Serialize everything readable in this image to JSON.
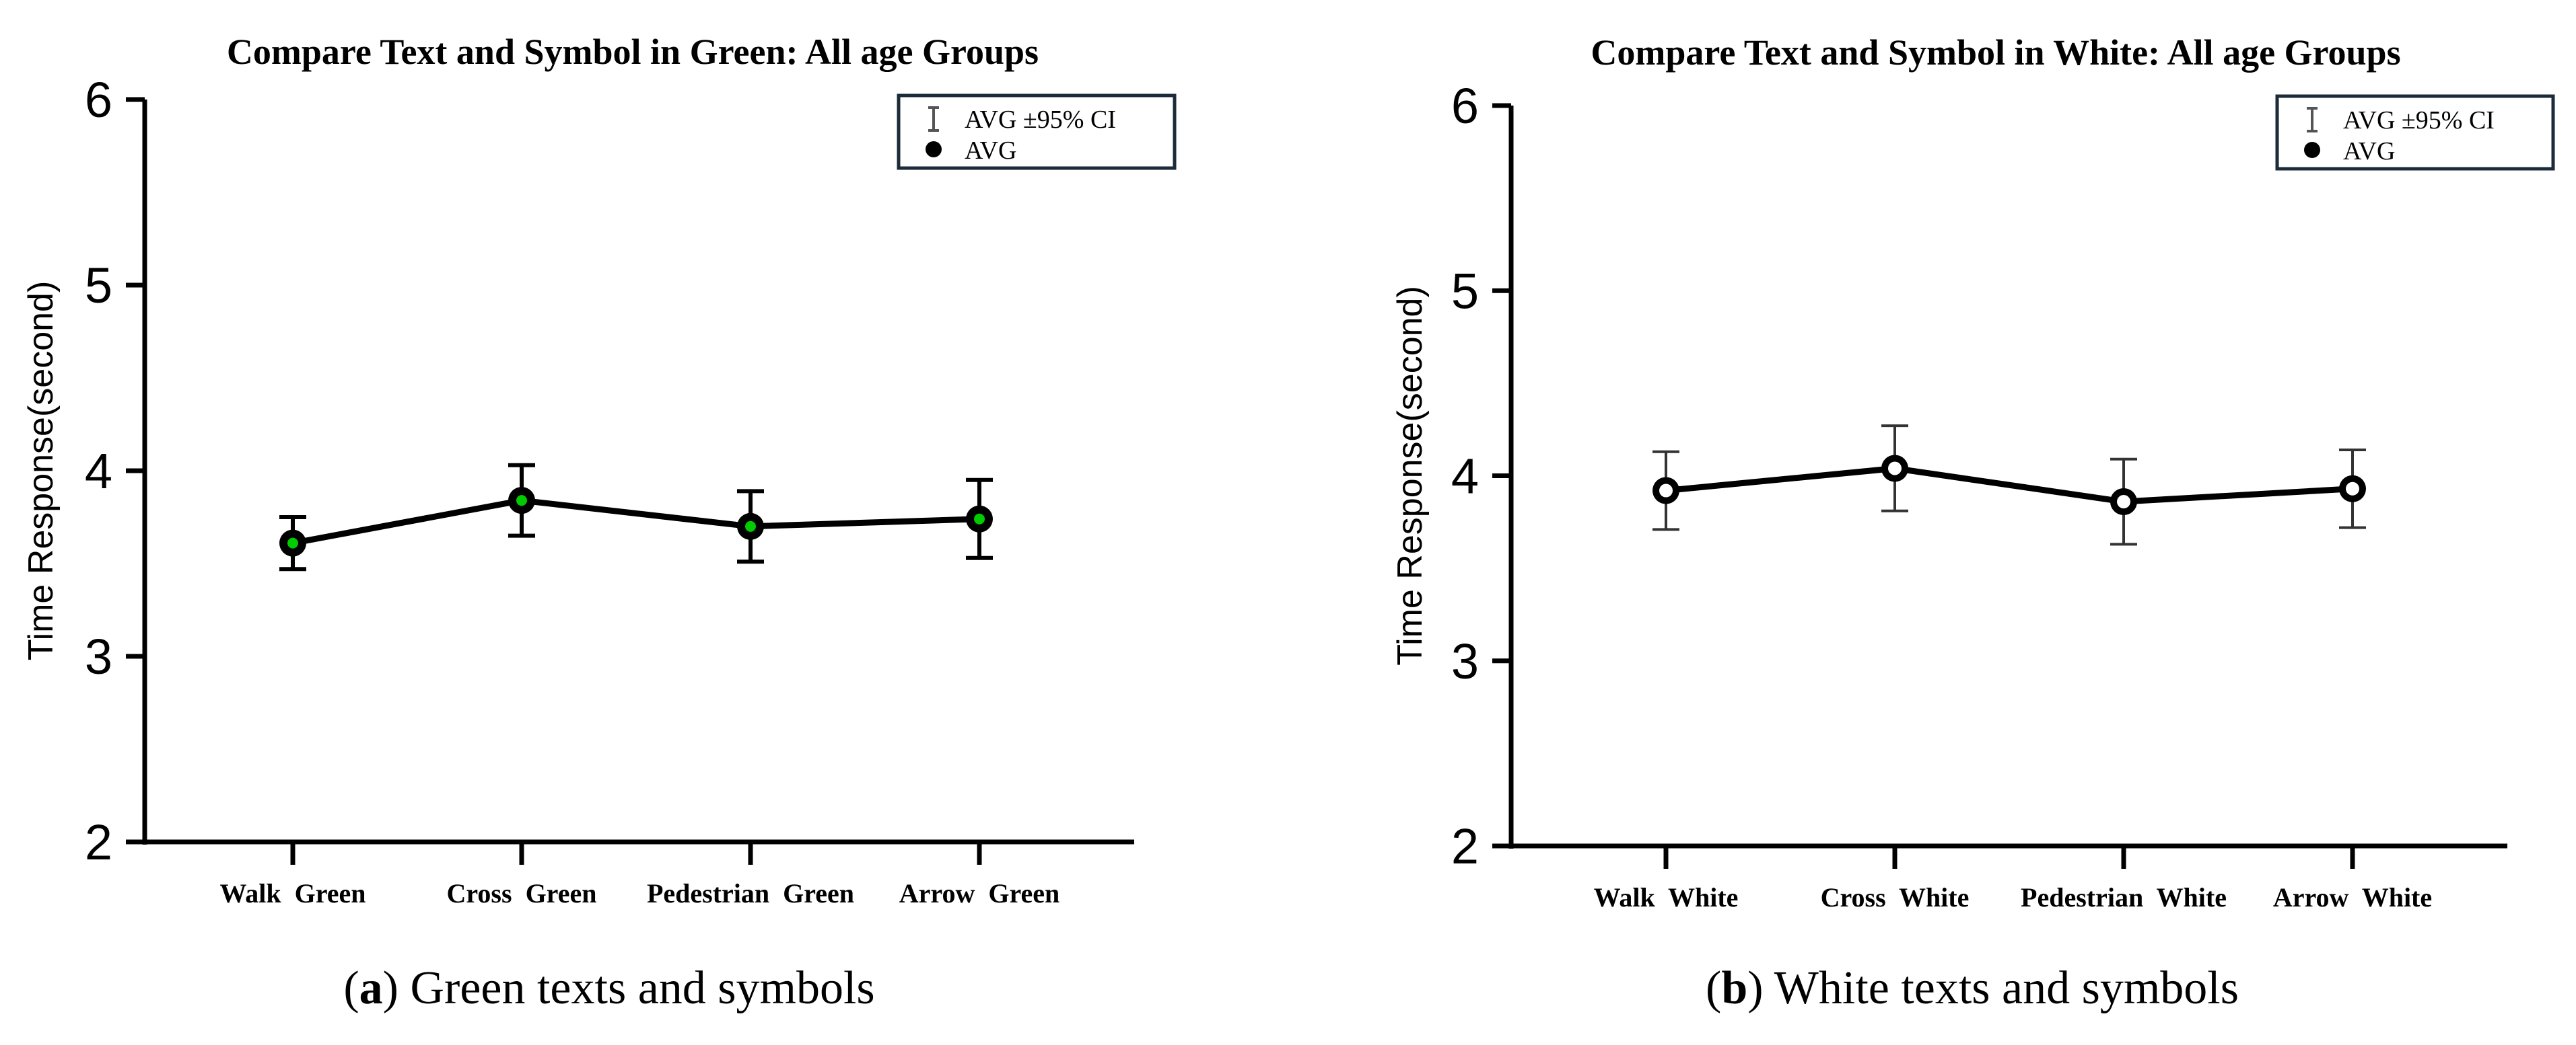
{
  "chart_data": [
    {
      "type": "line",
      "title": "Compare Text and Symbol in Green: All age Groups",
      "ylabel": "Time Response(second)",
      "xlabel": "",
      "ylim": [
        2,
        6
      ],
      "yticks": [
        2,
        3,
        4,
        5,
        6
      ],
      "categories": [
        "Walk  Green",
        "Cross  Green",
        "Pedestrian  Green",
        "Arrow  Green"
      ],
      "series": [
        {
          "name": "AVG",
          "values": [
            3.61,
            3.84,
            3.7,
            3.74
          ],
          "ci_low": [
            3.47,
            3.65,
            3.51,
            3.53
          ],
          "ci_high": [
            3.75,
            4.03,
            3.89,
            3.95
          ],
          "marker_color": "#00cc00"
        }
      ],
      "legend": {
        "placement": "top-right",
        "entries": [
          "AVG ±95% CI",
          "AVG"
        ]
      },
      "grid": false,
      "caption_letter": "a",
      "caption_text": " Green texts and symbols"
    },
    {
      "type": "line",
      "title": "Compare Text and Symbol in White: All age Groups",
      "ylabel": "Time Response(second)",
      "xlabel": "",
      "ylim": [
        2,
        6
      ],
      "yticks": [
        2,
        3,
        4,
        5,
        6
      ],
      "categories": [
        "Walk  White",
        "Cross  White",
        "Pedestrian  White",
        "Arrow  White"
      ],
      "series": [
        {
          "name": "AVG",
          "values": [
            3.92,
            4.04,
            3.86,
            3.93
          ],
          "ci_low": [
            3.71,
            3.81,
            3.63,
            3.72
          ],
          "ci_high": [
            4.13,
            4.27,
            4.09,
            4.14
          ],
          "marker_color": "#ffffff"
        }
      ],
      "legend": {
        "placement": "top-right",
        "entries": [
          "AVG ±95% CI",
          "AVG"
        ]
      },
      "grid": false,
      "caption_letter": "b",
      "caption_text": " White texts and symbols"
    }
  ]
}
